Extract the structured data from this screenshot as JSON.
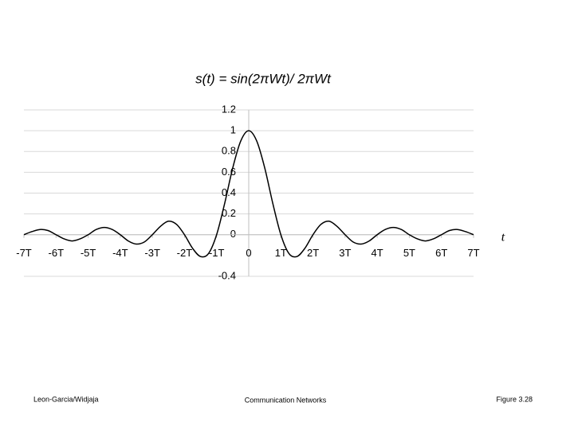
{
  "chart_data": {
    "type": "line",
    "title": "s(t) = sin(2πWt)/ 2πWt",
    "x_label": "t",
    "x": [
      -7,
      -6.75,
      -6.5,
      -6.25,
      -6,
      -5.75,
      -5.5,
      -5.25,
      -5,
      -4.75,
      -4.5,
      -4.25,
      -4,
      -3.75,
      -3.5,
      -3.25,
      -3,
      -2.75,
      -2.5,
      -2.25,
      -2,
      -1.75,
      -1.5,
      -1.25,
      -1,
      -0.75,
      -0.5,
      -0.25,
      0,
      0.25,
      0.5,
      0.75,
      1,
      1.25,
      1.5,
      1.75,
      2,
      2.25,
      2.5,
      2.75,
      3,
      3.25,
      3.5,
      3.75,
      4,
      4.25,
      4.5,
      4.75,
      5,
      5.25,
      5.5,
      5.75,
      6,
      6.25,
      6.5,
      6.75,
      7
    ],
    "series": [
      {
        "color": "#000000",
        "values": [
          0,
          0.03,
          0.05,
          0.04,
          0,
          -0.04,
          -0.06,
          -0.04,
          0,
          0.05,
          0.07,
          0.05,
          0,
          -0.06,
          -0.09,
          -0.07,
          0,
          0.08,
          0.13,
          0.1,
          0,
          -0.13,
          -0.21,
          -0.18,
          0,
          0.3,
          0.64,
          0.9,
          1,
          0.9,
          0.64,
          0.3,
          0,
          -0.18,
          -0.21,
          -0.13,
          0,
          0.1,
          0.13,
          0.08,
          0,
          -0.07,
          -0.09,
          -0.06,
          0,
          0.05,
          0.07,
          0.05,
          0,
          -0.04,
          -0.06,
          -0.04,
          0,
          0.04,
          0.05,
          0.03,
          0
        ]
      }
    ],
    "xlim": [
      -7,
      7
    ],
    "xticks": [
      {
        "value": -7,
        "label": "-7T"
      },
      {
        "value": -6,
        "label": "-6T"
      },
      {
        "value": -5,
        "label": "-5T"
      },
      {
        "value": -4,
        "label": "-4T"
      },
      {
        "value": -3,
        "label": "-3T"
      },
      {
        "value": -2,
        "label": "-2T"
      },
      {
        "value": -1,
        "label": "-1T"
      },
      0,
      {
        "value": 1,
        "label": "1T"
      },
      {
        "value": 2,
        "label": "2T"
      },
      {
        "value": 3,
        "label": "3T"
      },
      {
        "value": 4,
        "label": "4T"
      },
      {
        "value": 5,
        "label": "5T"
      },
      {
        "value": 6,
        "label": "6T"
      },
      {
        "value": 7,
        "label": "7T"
      }
    ],
    "ylim": [
      -0.4,
      1.2
    ],
    "yticks": [
      1.2,
      1,
      0.8,
      0.6,
      0.4,
      0.2,
      0,
      -0.4
    ],
    "grid": true
  },
  "footer": {
    "left": "Leon-Garcia/Widjaja",
    "center": "Communication Networks",
    "right": "Figure 3.28"
  }
}
